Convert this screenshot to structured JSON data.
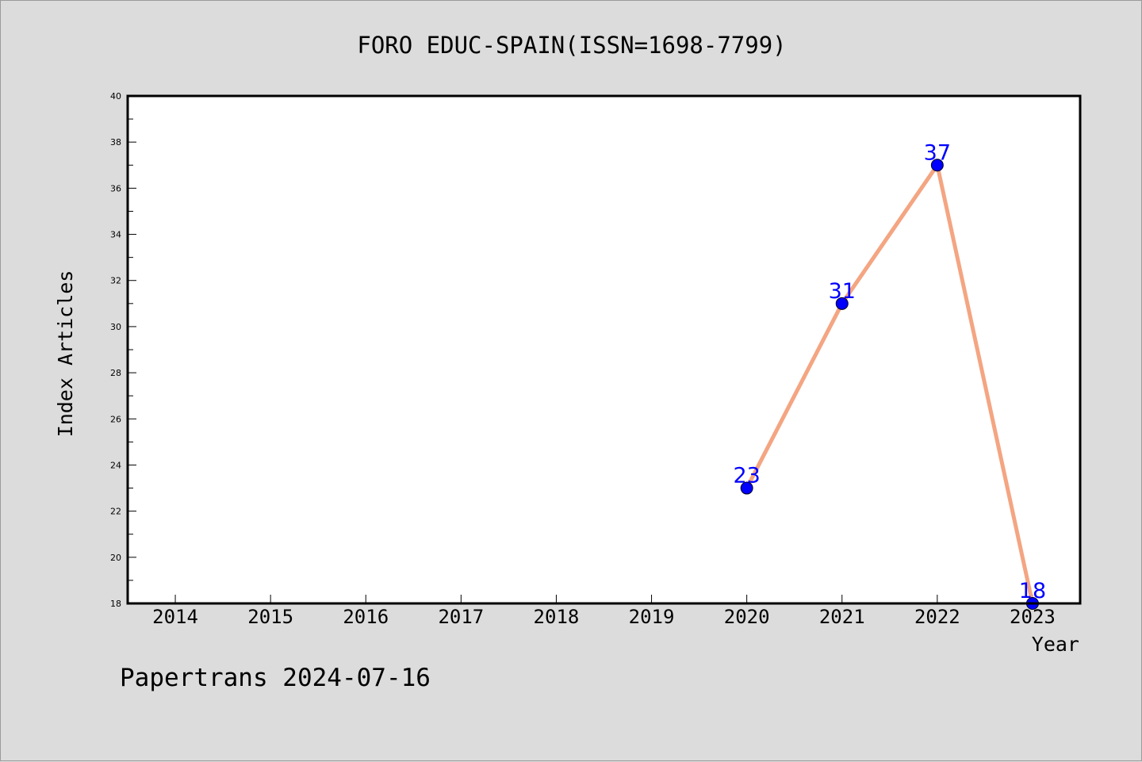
{
  "chart_data": {
    "type": "line",
    "title": "FORO EDUC-SPAIN(ISSN=1698-7799)",
    "xlabel": "Year",
    "ylabel": "Index Articles",
    "x_ticks": [
      "2014",
      "2015",
      "2016",
      "2017",
      "2018",
      "2019",
      "2020",
      "2021",
      "2022",
      "2023"
    ],
    "y_ticks": [
      "18",
      "20",
      "22",
      "24",
      "26",
      "28",
      "30",
      "32",
      "34",
      "36",
      "38",
      "40"
    ],
    "xlim": [
      2013.5,
      2023.5
    ],
    "ylim": [
      18,
      40
    ],
    "grid": false,
    "series": [
      {
        "x": [
          2020,
          2021,
          2022,
          2023
        ],
        "values": [
          23,
          31,
          37,
          18
        ],
        "labels": [
          "23",
          "31",
          "37",
          "18"
        ]
      }
    ],
    "colors": {
      "line": "#f4a582",
      "marker": "#0000ff",
      "label": "#0000ff",
      "background": "#dcdcdc",
      "plot_area": "#ffffff"
    }
  },
  "footer": "Papertrans 2024-07-16"
}
